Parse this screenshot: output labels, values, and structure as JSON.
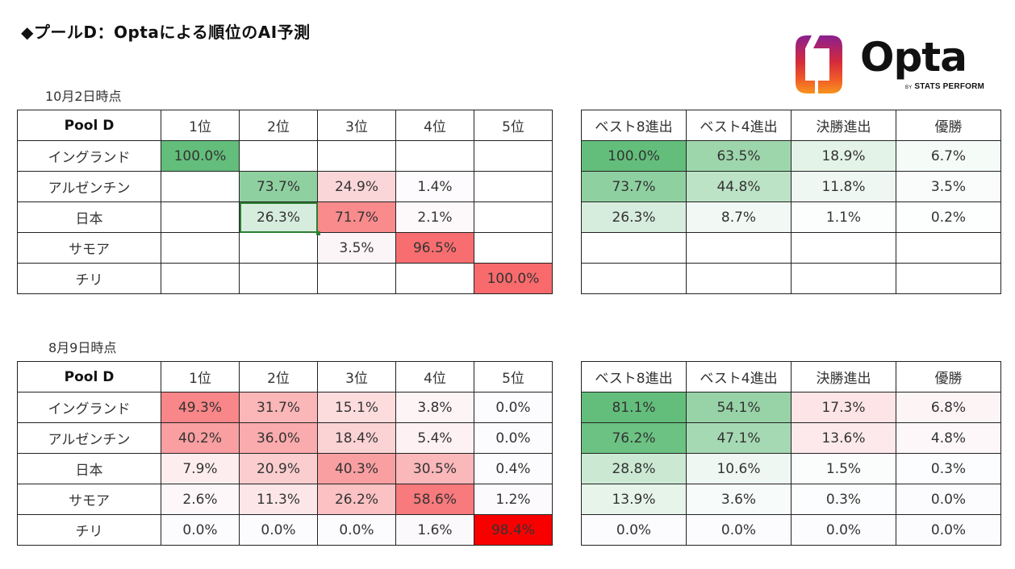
{
  "title": "◆プールD：Optaによる順位のAI予測",
  "logo": {
    "word": "Opta",
    "by": "BY",
    "sub": "STATS PERFORM"
  },
  "rank_headers": [
    "Pool D",
    "1位",
    "2位",
    "3位",
    "4位",
    "5位"
  ],
  "adv_headers": [
    "ベスト8進出",
    "ベスト4進出",
    "決勝進出",
    "優勝"
  ],
  "oct": {
    "label": "10月2日時点",
    "rank_rows": [
      {
        "team": "イングランド",
        "values": [
          "100.0%",
          "",
          "",
          "",
          ""
        ],
        "colors": [
          "#63be7b",
          "",
          "",
          "",
          ""
        ]
      },
      {
        "team": "アルゼンチン",
        "values": [
          "",
          "73.7%",
          "24.9%",
          "1.4%",
          ""
        ],
        "colors": [
          "",
          "#8fd0a0",
          "#fbd6d8",
          "#fdfbfd",
          ""
        ]
      },
      {
        "team": "日本",
        "values": [
          "",
          "26.3%",
          "71.7%",
          "2.1%",
          ""
        ],
        "colors": [
          "",
          "#d6ecdc",
          "#f98b8d",
          "#fdf9fb",
          ""
        ]
      },
      {
        "team": "サモア",
        "values": [
          "",
          "",
          "3.5%",
          "96.5%",
          ""
        ],
        "colors": [
          "",
          "",
          "#fcf5f7",
          "#f86e70",
          ""
        ]
      },
      {
        "team": "チリ",
        "values": [
          "",
          "",
          "",
          "",
          "100.0%"
        ],
        "colors": [
          "",
          "",
          "",
          "",
          "#f86a6c"
        ]
      }
    ],
    "adv_rows": [
      {
        "values": [
          "100.0%",
          "63.5%",
          "18.9%",
          "6.7%"
        ],
        "colors": [
          "#63be7b",
          "#9ed6ac",
          "#e4f3e8",
          "#f5fbf7"
        ]
      },
      {
        "values": [
          "73.7%",
          "44.8%",
          "11.8%",
          "3.5%"
        ],
        "colors": [
          "#8fd0a0",
          "#bde3c7",
          "#eef7f1",
          "#f9fcfa"
        ]
      },
      {
        "values": [
          "26.3%",
          "8.7%",
          "1.1%",
          "0.2%"
        ],
        "colors": [
          "#d6ecdc",
          "#f2f9f4",
          "#fcfdfd",
          "#fdfefe"
        ]
      },
      {
        "values": [
          "",
          "",
          "",
          ""
        ],
        "colors": [
          "",
          "",
          "",
          ""
        ]
      },
      {
        "values": [
          "",
          "",
          "",
          ""
        ],
        "colors": [
          "",
          "",
          "",
          ""
        ]
      }
    ]
  },
  "aug": {
    "label": "8月9日時点",
    "rank_rows": [
      {
        "team": "イングランド",
        "values": [
          "49.3%",
          "31.7%",
          "15.1%",
          "3.8%",
          "0.0%"
        ],
        "colors": [
          "#f98688",
          "#fbb6b8",
          "#fcdcdd",
          "#fdf4f6",
          "#fcfcff"
        ]
      },
      {
        "team": "アルゼンチン",
        "values": [
          "40.2%",
          "36.0%",
          "18.4%",
          "5.4%",
          "0.0%"
        ],
        "colors": [
          "#f99fa1",
          "#faabad",
          "#fbd3d5",
          "#fdf1f3",
          "#fcfcff"
        ]
      },
      {
        "team": "日本",
        "values": [
          "7.9%",
          "20.9%",
          "40.3%",
          "30.5%",
          "0.4%"
        ],
        "colors": [
          "#fdedef",
          "#fbcdcf",
          "#f99fa1",
          "#fab8ba",
          "#fcfbfe"
        ]
      },
      {
        "team": "サモア",
        "values": [
          "2.6%",
          "11.3%",
          "26.2%",
          "58.6%",
          "1.2%"
        ],
        "colors": [
          "#fdf7f9",
          "#fce6e8",
          "#fbc1c3",
          "#f87a7c",
          "#fcfafd"
        ]
      },
      {
        "team": "チリ",
        "values": [
          "0.0%",
          "0.0%",
          "0.0%",
          "1.6%",
          "98.4%"
        ],
        "colors": [
          "#fcfcff",
          "#fcfcff",
          "#fcfcff",
          "#fcf9fc",
          "#f80000"
        ]
      }
    ],
    "adv_rows": [
      {
        "values": [
          "81.1%",
          "54.1%",
          "17.3%",
          "6.8%"
        ],
        "colors": [
          "#63be7b",
          "#97d3a7",
          "#fde4e6",
          "#fdf4f6"
        ]
      },
      {
        "values": [
          "76.2%",
          "47.1%",
          "13.6%",
          "4.8%"
        ],
        "colors": [
          "#6bc282",
          "#a5d9b3",
          "#fde9eb",
          "#fdf7f9"
        ]
      },
      {
        "values": [
          "28.8%",
          "10.6%",
          "1.5%",
          "0.3%"
        ],
        "colors": [
          "#cbe8d3",
          "#eef7f1",
          "#fbfdfc",
          "#fcfdfe"
        ]
      },
      {
        "values": [
          "13.9%",
          "3.6%",
          "0.3%",
          "0.0%"
        ],
        "colors": [
          "#e6f4ea",
          "#f7fbf9",
          "#fcfdfe",
          "#fcfcff"
        ]
      },
      {
        "values": [
          "0.0%",
          "0.0%",
          "0.0%",
          "0.0%"
        ],
        "colors": [
          "#fcfcff",
          "#fcfcff",
          "#fcfcff",
          "#fcfcff"
        ]
      }
    ]
  }
}
